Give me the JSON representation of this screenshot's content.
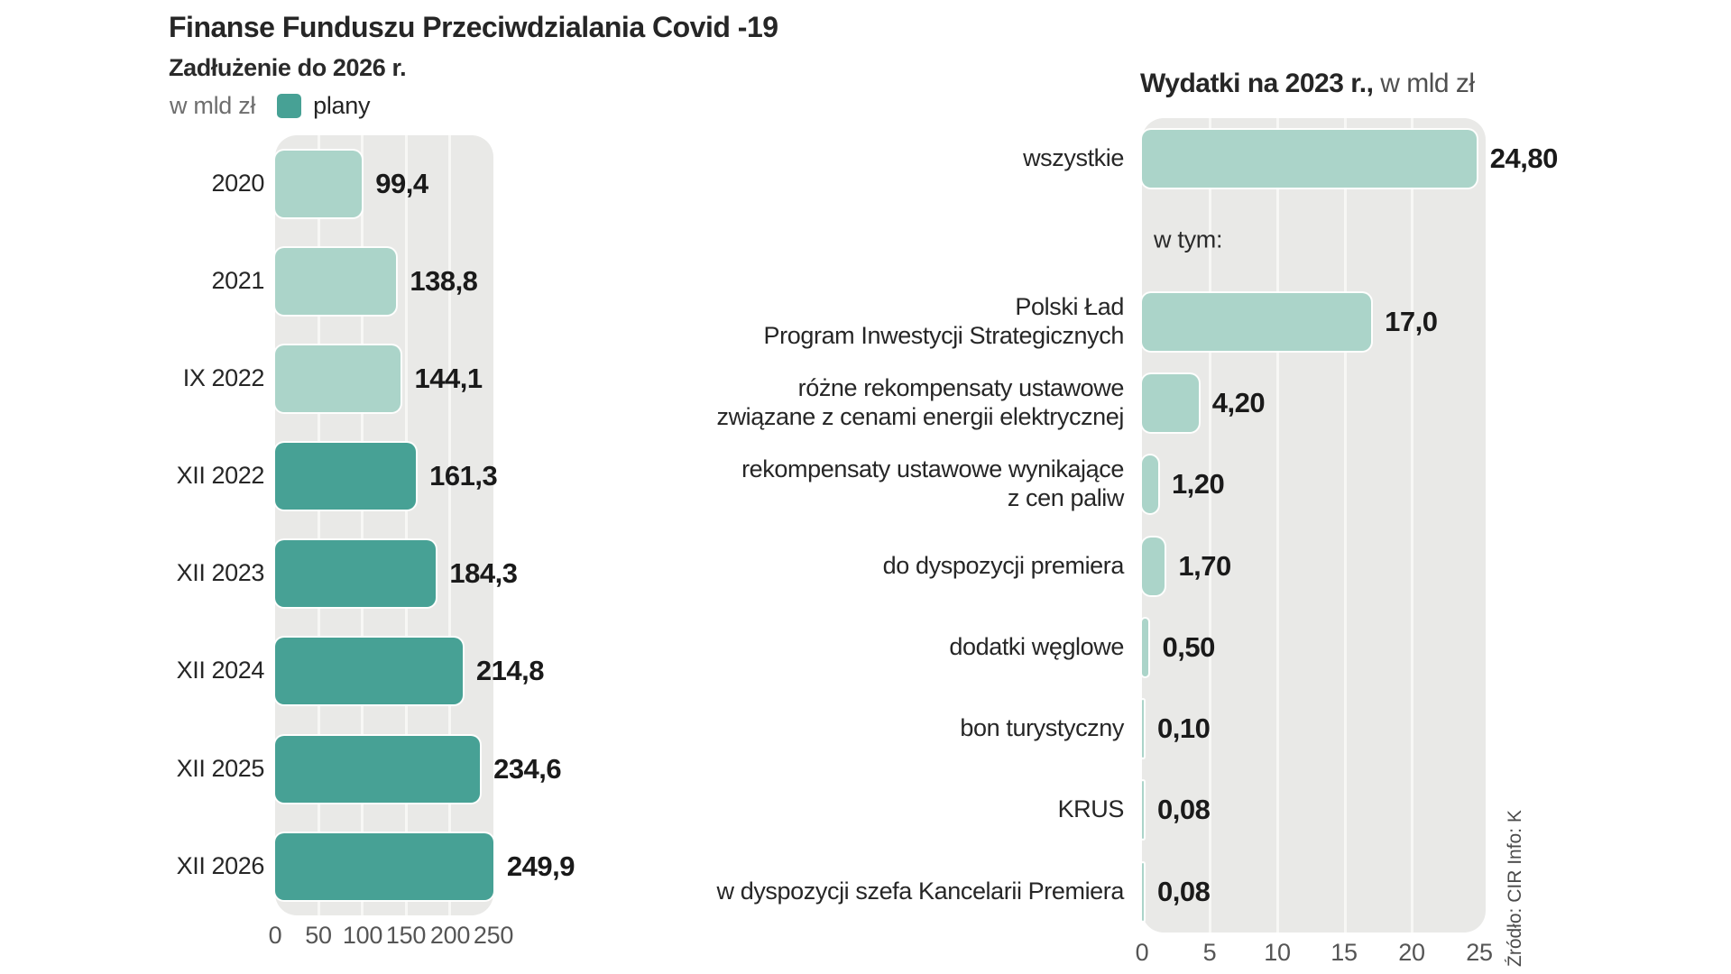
{
  "title": "Finanse Funduszu Przeciwdzialania Covid -19",
  "source": "Źródło: CIR Info: K",
  "colors": {
    "plan_bar": "#47a195",
    "actual_bar": "#abd4c9",
    "plot_background": "#e9e9e7",
    "gridline": "#f7f7f5"
  },
  "left_chart": {
    "subtitle": "Zadłużenie do 2026 r.",
    "unit": "w mld zł",
    "legend_label": "plany",
    "rows": [
      {
        "label": "2020",
        "value": 99.4,
        "value_label": "99,4",
        "plan": false
      },
      {
        "label": "2021",
        "value": 138.8,
        "value_label": "138,8",
        "plan": false
      },
      {
        "label": "IX 2022",
        "value": 144.1,
        "value_label": "144,1",
        "plan": false
      },
      {
        "label": "XII 2022",
        "value": 161.3,
        "value_label": "161,3",
        "plan": true
      },
      {
        "label": "XII 2023",
        "value": 184.3,
        "value_label": "184,3",
        "plan": true
      },
      {
        "label": "XII 2024",
        "value": 214.8,
        "value_label": "214,8",
        "plan": true
      },
      {
        "label": "XII 2025",
        "value": 234.6,
        "value_label": "234,6",
        "plan": true
      },
      {
        "label": "XII 2026",
        "value": 249.9,
        "value_label": "249,9",
        "plan": true
      }
    ],
    "axis_ticks": [
      "0",
      "50",
      "100",
      "150",
      "200",
      "250"
    ]
  },
  "right_chart": {
    "title_bold": "Wydatki na 2023 r.,",
    "title_unit": " w mld zł",
    "subgroup_label": "w tym:",
    "rows": [
      {
        "label": "wszystkie",
        "value": 24.8,
        "value_label": "24,80"
      },
      {
        "label": "Polski Ład\nProgram Inwestycji Strategicznych",
        "value": 17.0,
        "value_label": "17,0"
      },
      {
        "label": "różne rekompensaty ustawowe\nzwiązane z cenami energii elektrycznej",
        "value": 4.2,
        "value_label": "4,20"
      },
      {
        "label": "rekompensaty ustawowe wynikające\nz cen paliw",
        "value": 1.2,
        "value_label": "1,20"
      },
      {
        "label": "do dyspozycji premiera",
        "value": 1.7,
        "value_label": "1,70"
      },
      {
        "label": "dodatki węglowe",
        "value": 0.5,
        "value_label": "0,50"
      },
      {
        "label": "bon turystyczny",
        "value": 0.1,
        "value_label": "0,10"
      },
      {
        "label": "KRUS",
        "value": 0.08,
        "value_label": "0,08"
      },
      {
        "label": "w dyspozycji szefa Kancelarii Premiera",
        "value": 0.08,
        "value_label": "0,08"
      }
    ],
    "axis_ticks": [
      "0",
      "5",
      "10",
      "15",
      "20",
      "25"
    ]
  },
  "chart_data": [
    {
      "type": "bar",
      "orientation": "horizontal",
      "title": "Zadłużenie do 2026 r.",
      "unit": "w mld zł",
      "legend": [
        {
          "label": "plany",
          "color": "#47a195"
        }
      ],
      "legend_position": "top",
      "categories": [
        "2020",
        "2021",
        "IX 2022",
        "XII 2022",
        "XII 2023",
        "XII 2024",
        "XII 2025",
        "XII 2026"
      ],
      "values": [
        99.4,
        138.8,
        144.1,
        161.3,
        184.3,
        214.8,
        234.6,
        249.9
      ],
      "is_plan": [
        false,
        false,
        false,
        true,
        true,
        true,
        true,
        true
      ],
      "xlim": [
        0,
        250
      ],
      "x_ticks": [
        0,
        50,
        100,
        150,
        200,
        250
      ],
      "grid": true,
      "data_labels": [
        "99,4",
        "138,8",
        "144,1",
        "161,3",
        "184,3",
        "214,8",
        "234,6",
        "249,9"
      ]
    },
    {
      "type": "bar",
      "orientation": "horizontal",
      "title": "Wydatki na 2023 r., w mld zł",
      "annotation": "w tym:",
      "categories": [
        "wszystkie",
        "Polski Ład Program Inwestycji Strategicznych",
        "różne rekompensaty ustawowe związane z cenami energii elektrycznej",
        "rekompensaty ustawowe wynikające z cen paliw",
        "do dyspozycji premiera",
        "dodatki węglowe",
        "bon turystyczny",
        "KRUS",
        "w dyspozycji szefa Kancelarii Premiera"
      ],
      "values": [
        24.8,
        17.0,
        4.2,
        1.2,
        1.7,
        0.5,
        0.1,
        0.08,
        0.08
      ],
      "xlim": [
        0,
        25
      ],
      "x_ticks": [
        0,
        5,
        10,
        15,
        20,
        25
      ],
      "grid": true,
      "data_labels": [
        "24,80",
        "17,0",
        "4,20",
        "1,20",
        "1,70",
        "0,50",
        "0,10",
        "0,08",
        "0,08"
      ]
    }
  ]
}
